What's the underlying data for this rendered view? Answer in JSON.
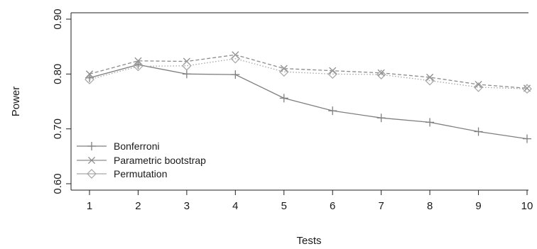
{
  "chart_data": {
    "type": "line",
    "title": "",
    "xlabel": "Tests",
    "ylabel": "Power",
    "x": [
      1,
      2,
      3,
      4,
      5,
      6,
      7,
      8,
      9,
      10
    ],
    "x_tick_labels": [
      "1",
      "2",
      "3",
      "4",
      "5",
      "6",
      "7",
      "8",
      "9",
      "10"
    ],
    "y_ticks": [
      0.6,
      0.7,
      0.8,
      0.9
    ],
    "y_tick_labels": [
      "0.60",
      "0.70",
      "0.80",
      "0.90"
    ],
    "xlim": [
      1,
      10
    ],
    "ylim": [
      0.6,
      0.9
    ],
    "grid": false,
    "legend_position": "bottom-left",
    "series": [
      {
        "name": "Bonferroni",
        "values": [
          0.793,
          0.817,
          0.8,
          0.799,
          0.756,
          0.733,
          0.72,
          0.712,
          0.695,
          0.682
        ],
        "marker": "plus",
        "line_style": "solid",
        "color": "#7f7f7f"
      },
      {
        "name": "Parametric bootstrap",
        "values": [
          0.8,
          0.824,
          0.823,
          0.835,
          0.81,
          0.806,
          0.802,
          0.794,
          0.781,
          0.774
        ],
        "marker": "cross",
        "line_style": "dashed",
        "color": "#8c8c8c"
      },
      {
        "name": "Permutation",
        "values": [
          0.79,
          0.814,
          0.815,
          0.828,
          0.804,
          0.8,
          0.799,
          0.788,
          0.776,
          0.773
        ],
        "marker": "diamond",
        "line_style": "dotted",
        "color": "#a6a6a6"
      }
    ]
  }
}
